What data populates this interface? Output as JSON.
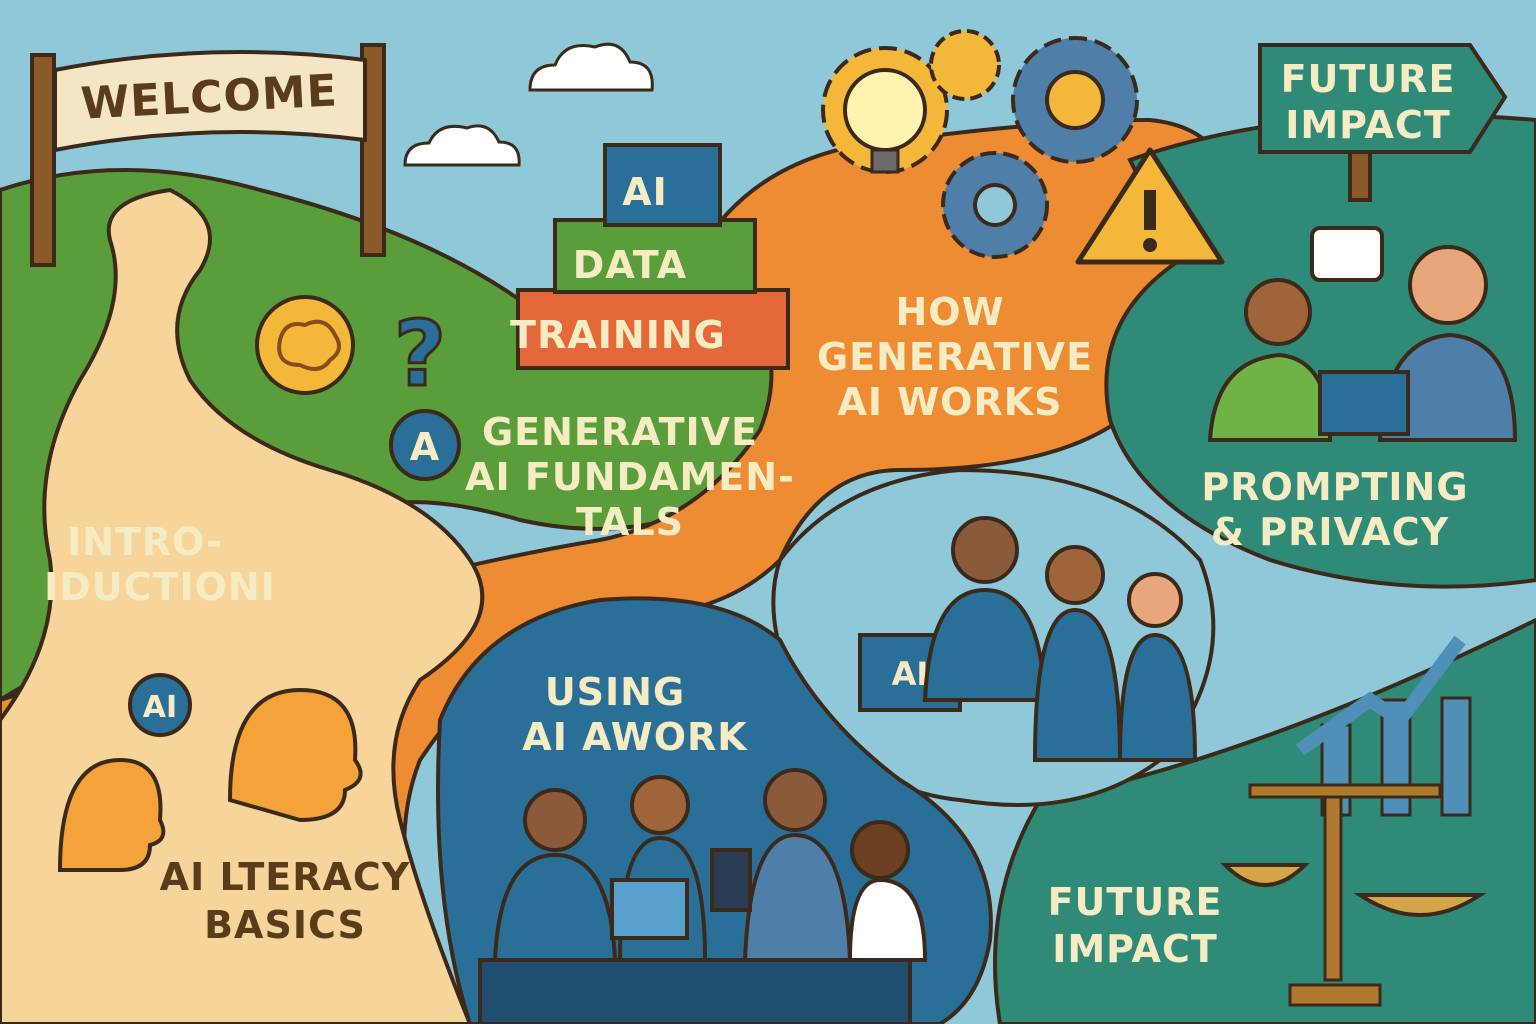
{
  "welcome_sign": {
    "text": "WELCOME"
  },
  "signpost": {
    "line1": "FUTURE",
    "line2": "IMPACT"
  },
  "stack_blocks": {
    "top": "AI",
    "middle": "DATA",
    "bottom": "TRAINING"
  },
  "sections": {
    "intro": {
      "line1": "INTRO-",
      "line2": "IDUCTIONI"
    },
    "literacy": {
      "line1": "AI LTERACY",
      "line2": "BASICS",
      "badge": "AI"
    },
    "fundamentals": {
      "line1": "GENERATIVE",
      "line2": "AI FUNDAMEN-",
      "line3": "TALS"
    },
    "how_it_works": {
      "line1": "HOW",
      "line2": "GENERATIVE",
      "line3": "AI WORKS"
    },
    "prompting": {
      "line1": "PROMPTING",
      "line2": "& PRIVACY"
    },
    "using_ai": {
      "line1": "USING",
      "line2": "AI AWORK"
    },
    "team_monitor": {
      "text": "AI"
    },
    "future": {
      "line1": "FUTURE",
      "line2": "IMPACT"
    }
  },
  "quiz_icons": {
    "question": "?",
    "answer": "A"
  },
  "colors": {
    "sky": "#8fc9d9",
    "green": "#5a9e3c",
    "orange": "#ee8c33",
    "blue": "#2a6f97",
    "teal": "#2f8a78",
    "path": "#f6d49a",
    "outline": "#3b2a1a"
  }
}
